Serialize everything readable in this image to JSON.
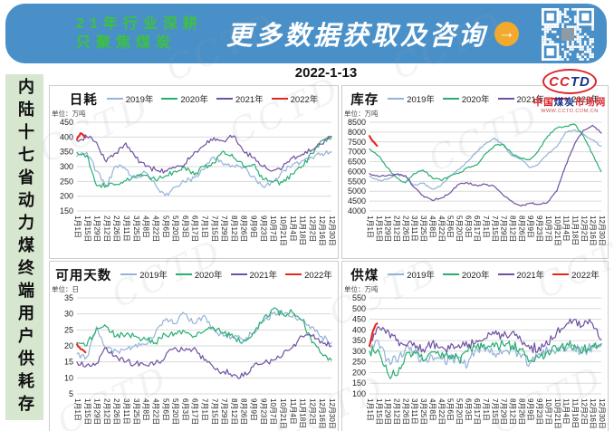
{
  "page": {
    "date": "2022-1-13"
  },
  "banner": {
    "slogan_line1": "21年行业深耕",
    "slogan_line2": "只聚焦煤炭",
    "cta_text": "更多数据获取及咨询",
    "arrow_icon": "→",
    "colors": {
      "banner_bg": "#4a90c8",
      "slogan_green": "#3dc23d",
      "arrow_orange": "#f2a92d"
    }
  },
  "logo": {
    "brand_cc": "CC",
    "brand_td": "TD",
    "site_part1": "中国",
    "site_part2": "煤炭",
    "site_part3": "市场网",
    "site_url": "WWW.CCTD.COM.CN"
  },
  "sidebar": {
    "vertical_title": "内陆十七省动力煤终端用户供耗存"
  },
  "watermark": {
    "text": "CCTD"
  },
  "chart_data": [
    {
      "type": "line",
      "title": "日耗",
      "unit_label": "单位：万吨",
      "ylim": [
        150,
        450
      ],
      "ytick_step": 50,
      "grid": true,
      "legend_position": "top",
      "x_spacing_days": 14,
      "noise_amp": 9,
      "x_tick_labels": [
        "1月1日",
        "1月15日",
        "1月29日",
        "2月12日",
        "2月26日",
        "3月11日",
        "3月25日",
        "4月8日",
        "4月22日",
        "5月6日",
        "5月20日",
        "6月3日",
        "6月17日",
        "7月1日",
        "7月15日",
        "7月29日",
        "8月12日",
        "8月26日",
        "9月9日",
        "9月23日",
        "10月7日",
        "10月21日",
        "11月4日",
        "11月18日",
        "12月2日",
        "12月16日",
        "12月30日"
      ],
      "series": [
        {
          "name": "2019年",
          "color": "#95b3d7",
          "values": [
            335,
            348,
            285,
            232,
            302,
            290,
            262,
            280,
            240,
            202,
            230,
            248,
            262,
            290,
            332,
            305,
            302,
            298,
            268,
            232,
            248,
            286,
            305,
            320,
            330,
            344,
            350
          ]
        },
        {
          "name": "2020年",
          "color": "#27ae72",
          "values": [
            348,
            338,
            236,
            236,
            240,
            252,
            265,
            270,
            255,
            268,
            285,
            298,
            272,
            300,
            312,
            352,
            330,
            302,
            308,
            256,
            248,
            246,
            275,
            300,
            345,
            388,
            398
          ]
        },
        {
          "name": "2021年",
          "color": "#6f51a1",
          "values": [
            388,
            402,
            382,
            316,
            346,
            380,
            330,
            300,
            290,
            286,
            296,
            308,
            350,
            372,
            398,
            386,
            404,
            352,
            330,
            300,
            286,
            296,
            330,
            342,
            356,
            376,
            402
          ]
        },
        {
          "name": "2022年",
          "color": "#e8251f",
          "x_days": [
            0,
            5,
            12
          ],
          "values": [
            392,
            413,
            399
          ]
        }
      ]
    },
    {
      "type": "line",
      "title": "库存",
      "unit_label": "单位：万吨",
      "ylim": [
        4000,
        8500
      ],
      "ytick_step": 500,
      "grid": true,
      "legend_position": "top",
      "x_spacing_days": 14,
      "noise_amp": 45,
      "x_tick_labels": [
        "1月1日",
        "1月15日",
        "1月29日",
        "2月12日",
        "2月26日",
        "3月11日",
        "3月25日",
        "4月8日",
        "4月22日",
        "5月6日",
        "5月20日",
        "6月3日",
        "6月17日",
        "7月1日",
        "7月15日",
        "7月29日",
        "8月12日",
        "8月26日",
        "9月9日",
        "9月23日",
        "10月7日",
        "10月21日",
        "11月4日",
        "11月18日",
        "12月2日",
        "12月16日",
        "12月30日"
      ],
      "series": [
        {
          "name": "2019年",
          "color": "#95b3d7",
          "values": [
            5750,
            5550,
            5600,
            5850,
            5780,
            5300,
            5420,
            5120,
            5280,
            5750,
            6100,
            6500,
            7000,
            7400,
            7700,
            7350,
            6800,
            6650,
            6200,
            6400,
            6900,
            7250,
            8000,
            8120,
            7900,
            7600,
            7280
          ]
        },
        {
          "name": "2020年",
          "color": "#27ae72",
          "values": [
            7150,
            6800,
            6200,
            5700,
            5430,
            5900,
            6080,
            5700,
            5560,
            5750,
            5900,
            6200,
            6320,
            6900,
            7300,
            7380,
            6900,
            6650,
            6600,
            7100,
            7800,
            8200,
            8300,
            8400,
            7800,
            6900,
            6000
          ]
        },
        {
          "name": "2021年",
          "color": "#6f51a1",
          "values": [
            5900,
            5750,
            5800,
            5850,
            5800,
            5200,
            4780,
            4550,
            4650,
            4900,
            5350,
            5420,
            5300,
            5340,
            5250,
            4800,
            4480,
            4250,
            4400,
            4350,
            4450,
            5000,
            6300,
            7400,
            8100,
            8350,
            7950
          ]
        },
        {
          "name": "2022年",
          "color": "#e8251f",
          "x_days": [
            0,
            5,
            12
          ],
          "values": [
            7800,
            7550,
            7300
          ]
        }
      ]
    },
    {
      "type": "line",
      "title": "可用天数",
      "unit_label": "单位：日",
      "ylim": [
        5,
        35
      ],
      "ytick_step": 5,
      "grid": true,
      "legend_position": "top",
      "x_spacing_days": 14,
      "noise_amp": 1.0,
      "x_tick_labels": [
        "1月1日",
        "1月15日",
        "1月29日",
        "2月12日",
        "2月26日",
        "3月11日",
        "3月25日",
        "4月8日",
        "4月22日",
        "5月6日",
        "5月20日",
        "6月3日",
        "6月17日",
        "7月1日",
        "7月15日",
        "7月29日",
        "8月12日",
        "8月26日",
        "9月9日",
        "9月23日",
        "10月7日",
        "10月21日",
        "11月4日",
        "11月18日",
        "12月2日",
        "12月16日",
        "12月30日"
      ],
      "series": [
        {
          "name": "2019年",
          "color": "#95b3d7",
          "values": [
            17.5,
            16.5,
            26,
            19,
            18.5,
            19,
            20.5,
            20.5,
            24,
            28,
            27,
            30,
            27,
            29.5,
            25,
            23,
            22.5,
            22,
            24,
            27.5,
            30,
            30,
            29,
            28,
            26,
            23,
            21
          ]
        },
        {
          "name": "2020年",
          "color": "#27ae72",
          "values": [
            21,
            20,
            25.5,
            26,
            23,
            23.5,
            23,
            22,
            21,
            23.5,
            24,
            24.5,
            23,
            24.5,
            25.5,
            24,
            22.5,
            21.5,
            24,
            28,
            31.5,
            30,
            30.5,
            28,
            21,
            17.5,
            15.5
          ]
        },
        {
          "name": "2021年",
          "color": "#6f51a1",
          "values": [
            15,
            14,
            14.5,
            19.5,
            17,
            15,
            14.5,
            14,
            14.5,
            16.5,
            19.5,
            18.5,
            19.5,
            15.5,
            13,
            12,
            11,
            10.5,
            13.5,
            14.5,
            15.5,
            17,
            19.5,
            23,
            23,
            21.5,
            20
          ]
        },
        {
          "name": "2022年",
          "color": "#e8251f",
          "x_days": [
            0,
            5,
            12
          ],
          "values": [
            20.5,
            19,
            18
          ]
        }
      ]
    },
    {
      "type": "line",
      "title": "供煤",
      "unit_label": "单位：万吨",
      "ylim": [
        100,
        550
      ],
      "ytick_step": 50,
      "grid": true,
      "legend_position": "top",
      "x_spacing_days": 14,
      "noise_amp": 24,
      "x_tick_labels": [
        "1月1日",
        "1月15日",
        "1月29日",
        "2月12日",
        "2月26日",
        "3月11日",
        "3月25日",
        "4月8日",
        "4月22日",
        "5月6日",
        "5月20日",
        "6月3日",
        "6月17日",
        "7月1日",
        "7月15日",
        "7月29日",
        "8月12日",
        "8月26日",
        "9月9日",
        "9月23日",
        "10月7日",
        "10月21日",
        "11月4日",
        "11月18日",
        "12月2日",
        "12月16日",
        "12月30日"
      ],
      "series": [
        {
          "name": "2019年",
          "color": "#95b3d7",
          "values": [
            330,
            348,
            262,
            255,
            308,
            295,
            255,
            280,
            265,
            260,
            270,
            232,
            318,
            300,
            290,
            300,
            310,
            270,
            245,
            290,
            300,
            305,
            300,
            310,
            300,
            318,
            330
          ]
        },
        {
          "name": "2020年",
          "color": "#27ae72",
          "values": [
            300,
            308,
            200,
            185,
            278,
            300,
            255,
            298,
            270,
            280,
            260,
            298,
            320,
            310,
            320,
            330,
            328,
            308,
            255,
            270,
            300,
            310,
            320,
            330,
            310,
            328,
            335
          ]
        },
        {
          "name": "2021年",
          "color": "#6f51a1",
          "values": [
            330,
            415,
            400,
            350,
            330,
            340,
            310,
            338,
            320,
            310,
            330,
            320,
            350,
            360,
            380,
            370,
            390,
            350,
            310,
            320,
            330,
            390,
            420,
            450,
            420,
            430,
            355
          ]
        },
        {
          "name": "2022年",
          "color": "#e8251f",
          "x_days": [
            0,
            5,
            12
          ],
          "values": [
            325,
            390,
            430
          ]
        }
      ]
    }
  ]
}
